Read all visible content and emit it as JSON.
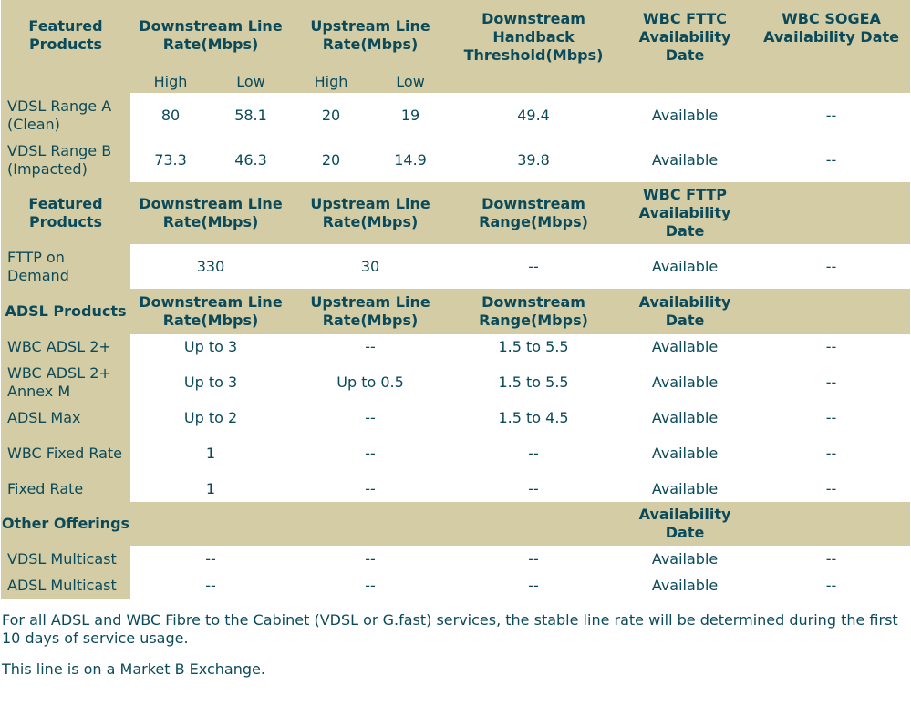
{
  "fttc": {
    "header": [
      "Featured Products",
      "Downstream Line Rate(Mbps)",
      "Upstream Line Rate(Mbps)",
      "Downstream Handback Threshold(Mbps)",
      "WBC FTTC Availability Date",
      "WBC SOGEA Availability Date"
    ],
    "subheader": [
      "High",
      "Low",
      "High",
      "Low"
    ],
    "rows": [
      {
        "label": "VDSL Range A (Clean)",
        "values": [
          "80",
          "58.1",
          "20",
          "19",
          "49.4",
          "Available",
          "--"
        ]
      },
      {
        "label": "VDSL Range B (Impacted)",
        "values": [
          "73.3",
          "46.3",
          "20",
          "14.9",
          "39.8",
          "Available",
          "--"
        ]
      }
    ]
  },
  "fttp": {
    "header": [
      "Featured Products",
      "Downstream Line Rate(Mbps)",
      "Upstream Line Rate(Mbps)",
      "Downstream Range(Mbps)",
      "WBC FTTP Availability Date",
      ""
    ],
    "rows": [
      {
        "label": "FTTP on Demand",
        "values": [
          "330",
          "30",
          "--",
          "Available",
          "--"
        ]
      }
    ]
  },
  "adsl": {
    "header": [
      "ADSL Products",
      "Downstream Line Rate(Mbps)",
      "Upstream Line Rate(Mbps)",
      "Downstream Range(Mbps)",
      "Availability Date",
      ""
    ],
    "rows": [
      {
        "label": "WBC ADSL 2+",
        "values": [
          "Up to 3",
          "--",
          "1.5 to 5.5",
          "Available",
          "--"
        ]
      },
      {
        "label": "WBC ADSL 2+ Annex M",
        "values": [
          "Up to 3",
          "Up to 0.5",
          "1.5 to 5.5",
          "Available",
          "--"
        ]
      },
      {
        "label": "ADSL Max",
        "values": [
          "Up to 2",
          "--",
          "1.5 to 4.5",
          "Available",
          "--"
        ]
      },
      {
        "label": "WBC Fixed Rate",
        "values": [
          "1",
          "--",
          "--",
          "Available",
          "--"
        ]
      },
      {
        "label": "Fixed Rate",
        "values": [
          "1",
          "--",
          "--",
          "Available",
          "--"
        ]
      }
    ]
  },
  "other": {
    "header": [
      "Other Offerings",
      "",
      "",
      "",
      "Availability Date",
      ""
    ],
    "rows": [
      {
        "label": "VDSL Multicast",
        "values": [
          "--",
          "--",
          "--",
          "Available",
          "--"
        ]
      },
      {
        "label": "ADSL Multicast",
        "values": [
          "--",
          "--",
          "--",
          "Available",
          "--"
        ]
      }
    ]
  },
  "notes": {
    "line1": "For all ADSL and WBC Fibre to the Cabinet (VDSL or G.fast) services, the stable line rate will be determined during the first 10 days of service usage.",
    "line2": "This line is on a Market B Exchange."
  },
  "colors": {
    "header_bg": "#d3cca4",
    "text": "#0b4a5a",
    "cell_bg": "#ffffff"
  }
}
